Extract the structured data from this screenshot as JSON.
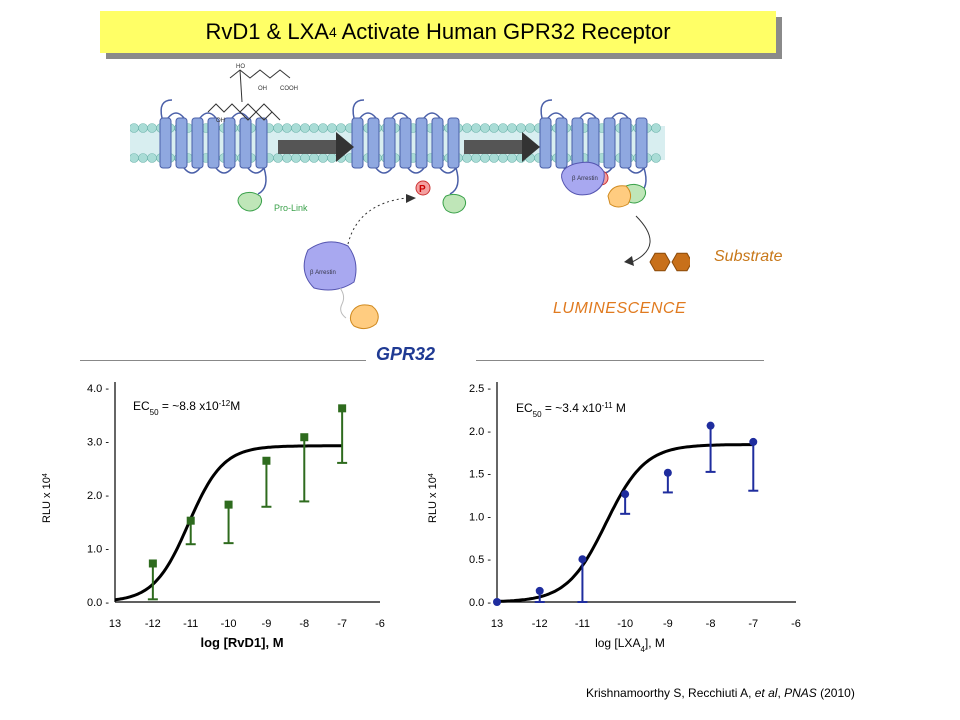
{
  "header": {
    "title_part1": "RvD1 & LXA",
    "title_sub": "4",
    "title_part2": " Activate Human GPR32 Receptor"
  },
  "diagram": {
    "pro_link_label": "Pro-Link",
    "substrate_label": "Substrate",
    "luminescence_label": "LUMINESCENCE",
    "phosphate_label": "P",
    "arrestin_label": "β Arrestin",
    "cooh_label": "COOH",
    "oh_label": "OH",
    "ho_label": "HO"
  },
  "section_label": "GPR32",
  "citation": {
    "authors": "Krishnamoorthy S, Recchiuti A, ",
    "etal": "et al",
    "sep": ", ",
    "journal": "PNAS",
    "year": " (2010)"
  },
  "chart_data": [
    {
      "type": "scatter",
      "ec50_prefix": "EC",
      "ec50_sub": "50",
      "ec50_mid": " = ~8.8 x10",
      "ec50_exp": "-12",
      "ec50_unit": "M",
      "ylabel_base": "RLU x 10",
      "ylabel_exp": "4",
      "xlabel": "log [RvD1], M",
      "xlim": [
        -13,
        -6
      ],
      "ylim": [
        0,
        4.0
      ],
      "x_ticks": [
        "13",
        "-12",
        "-11",
        "-10",
        "-9",
        "-8",
        "-7",
        "-6"
      ],
      "y_ticks": [
        "0.0 -",
        "1.0 -",
        "2.0 -",
        "3.0 -",
        "4.0 -"
      ],
      "y_tick_values": [
        0,
        1,
        2,
        3,
        4
      ],
      "color": "#2e6b1e",
      "marker": "square",
      "points": [
        {
          "x": -12,
          "y": 0.72,
          "err_low": 0.05
        },
        {
          "x": -11,
          "y": 1.52,
          "err_low": 1.08
        },
        {
          "x": -10,
          "y": 1.82,
          "err_low": 1.1
        },
        {
          "x": -9,
          "y": 2.64,
          "err_low": 1.78
        },
        {
          "x": -8,
          "y": 3.08,
          "err_low": 1.88
        },
        {
          "x": -7,
          "y": 3.62,
          "err_low": 2.6
        }
      ],
      "fit": {
        "bottom": 0.0,
        "top": 2.92,
        "logEC50": -11.06,
        "hill": 0.95
      }
    },
    {
      "type": "scatter",
      "ec50_prefix": "EC",
      "ec50_sub": "50",
      "ec50_mid": " = ~3.4 x10",
      "ec50_exp": "-11",
      "ec50_unit": " M",
      "ylabel_base": "RLU x 10",
      "ylabel_exp": "4",
      "xlabel_base": "log [LXA",
      "xlabel_sub": "4",
      "xlabel_tail": "], M",
      "xlim": [
        -13,
        -6
      ],
      "ylim": [
        0,
        2.5
      ],
      "x_ticks": [
        "13",
        "-12",
        "-11",
        "-10",
        "-9",
        "-8",
        "-7",
        "-6"
      ],
      "y_ticks": [
        "0.0 -",
        "0.5 -",
        "1.0 -",
        "1.5 -",
        "2.0 -",
        "2.5 -"
      ],
      "y_tick_values": [
        0,
        0.5,
        1.0,
        1.5,
        2.0,
        2.5
      ],
      "color": "#1f2d9e",
      "marker": "circle",
      "points": [
        {
          "x": -13,
          "y": 0.0
        },
        {
          "x": -12,
          "y": 0.13,
          "err_low": 0.0
        },
        {
          "x": -11,
          "y": 0.5,
          "err_low": 0.0
        },
        {
          "x": -10,
          "y": 1.26,
          "err_low": 1.03
        },
        {
          "x": -9,
          "y": 1.51,
          "err_low": 1.28
        },
        {
          "x": -8,
          "y": 2.06,
          "err_low": 1.52
        },
        {
          "x": -7,
          "y": 1.87,
          "err_low": 1.3
        }
      ],
      "fit": {
        "bottom": 0.0,
        "top": 1.84,
        "logEC50": -10.45,
        "hill": 0.95
      }
    }
  ]
}
